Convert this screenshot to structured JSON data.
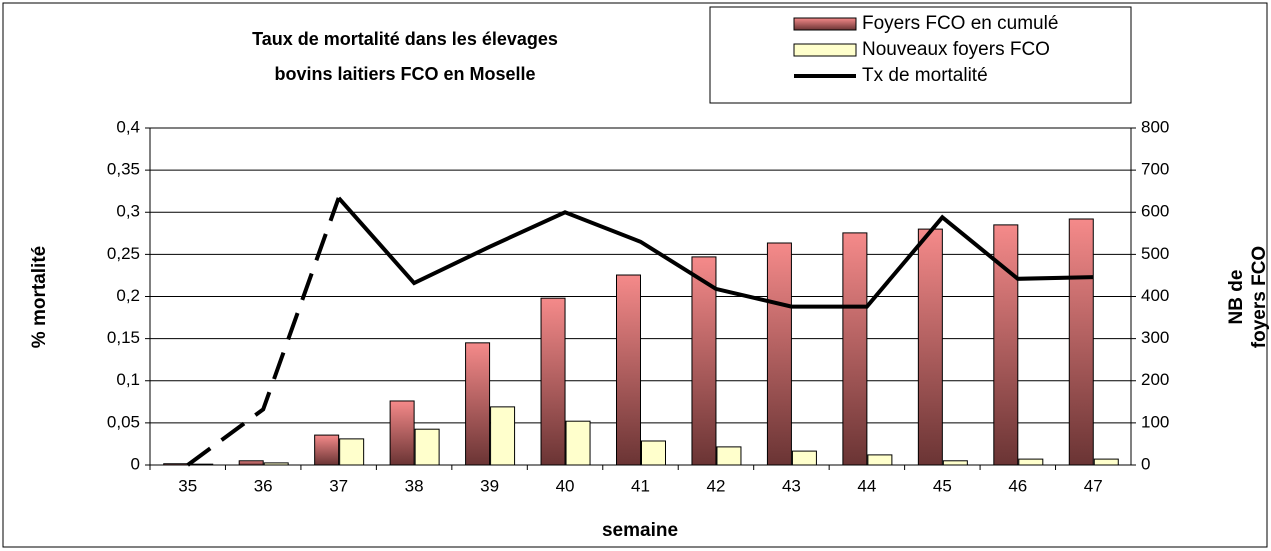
{
  "chart_data": {
    "type": "bar-line",
    "title": [
      "Taux de mortalité  dans les élevages",
      "bovins laitiers FCO en Moselle"
    ],
    "x_label": "semaine",
    "y_label": "% mortalité",
    "y2_label": [
      "NB de",
      "foyers FCO"
    ],
    "categories": [
      "35",
      "36",
      "37",
      "38",
      "39",
      "40",
      "41",
      "42",
      "43",
      "44",
      "45",
      "46",
      "47"
    ],
    "series": [
      {
        "name": "Foyers FCO en cumulé",
        "type": "bar",
        "axis": "y2",
        "color": "#f08080",
        "values": [
          3,
          10,
          71,
          152,
          290,
          396,
          451,
          494,
          527,
          551,
          560,
          570,
          584
        ]
      },
      {
        "name": "Nouveaux foyers FCO",
        "type": "bar",
        "axis": "y2",
        "color": "#ffffcc",
        "values": [
          2,
          5,
          62,
          85,
          138,
          104,
          57,
          43,
          33,
          24,
          10,
          14,
          14
        ]
      },
      {
        "name": "Tx de mortalité",
        "type": "line",
        "axis": "y",
        "color": "#000000",
        "dashed_segments": [
          0,
          1
        ],
        "values": [
          0,
          0.066,
          0.317,
          0.216,
          0.259,
          0.3,
          0.265,
          0.209,
          0.188,
          0.188,
          0.294,
          0.221,
          0.223
        ]
      }
    ],
    "ylim": [
      0,
      0.4
    ],
    "yticks": [
      0,
      {
        "value": 0.05,
        "label": "0,05"
      },
      {
        "value": 0.1,
        "label": "0,1"
      },
      {
        "value": 0.15,
        "label": "0,15"
      },
      {
        "value": 0.2,
        "label": "0,2"
      },
      {
        "value": 0.25,
        "label": "0,25"
      },
      {
        "value": 0.3,
        "label": "0,3"
      },
      {
        "value": 0.35,
        "label": "0,35"
      },
      {
        "value": 0.4,
        "label": "0,4"
      }
    ],
    "y2lim": [
      0,
      800
    ],
    "y2ticks": [
      0,
      100,
      200,
      300,
      400,
      500,
      600,
      700,
      800
    ],
    "grid": true
  }
}
